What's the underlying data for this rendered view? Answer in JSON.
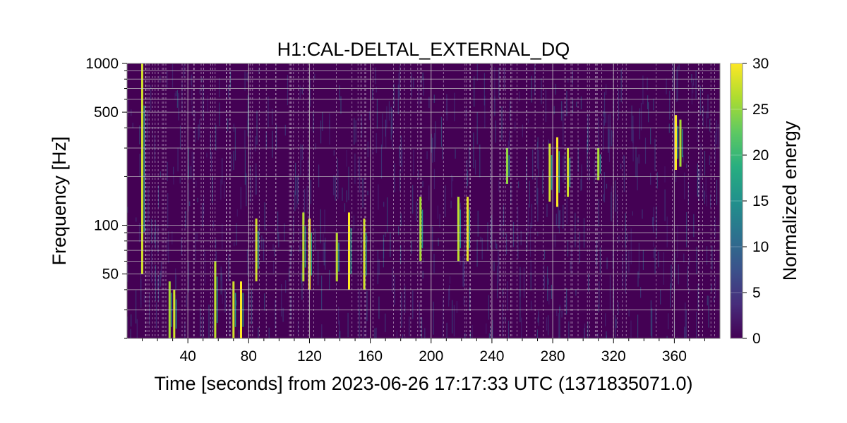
{
  "chart_data": {
    "type": "heatmap",
    "title": "H1:CAL-DELTAL_EXTERNAL_DQ",
    "xlabel": "Time [seconds] from 2023-06-26 17:17:33 UTC (1371835071.0)",
    "ylabel": "Frequency [Hz]",
    "xlim": [
      0,
      390
    ],
    "ylim": [
      20,
      1000
    ],
    "y_scale": "log",
    "x_ticks": [
      40,
      80,
      120,
      160,
      200,
      240,
      280,
      320,
      360
    ],
    "y_ticks": [
      50,
      100,
      500,
      1000
    ],
    "colorbar": {
      "label": "Normalized energy",
      "min": 0,
      "max": 30,
      "ticks": [
        0,
        5,
        10,
        15,
        20,
        25,
        30
      ],
      "colormap": "viridis"
    },
    "grid": true,
    "background_value": 0,
    "bright_streaks": [
      {
        "t": 10,
        "f_low": 50,
        "f_high": 1000,
        "energy": 28
      },
      {
        "t": 28,
        "f_low": 20,
        "f_high": 45,
        "energy": 26
      },
      {
        "t": 31,
        "f_low": 20,
        "f_high": 40,
        "energy": 28
      },
      {
        "t": 58,
        "f_low": 20,
        "f_high": 60,
        "energy": 27
      },
      {
        "t": 70,
        "f_low": 20,
        "f_high": 45,
        "energy": 28
      },
      {
        "t": 75,
        "f_low": 20,
        "f_high": 45,
        "energy": 30
      },
      {
        "t": 85,
        "f_low": 45,
        "f_high": 110,
        "energy": 28
      },
      {
        "t": 116,
        "f_low": 45,
        "f_high": 120,
        "energy": 27
      },
      {
        "t": 120,
        "f_low": 40,
        "f_high": 110,
        "energy": 30
      },
      {
        "t": 138,
        "f_low": 45,
        "f_high": 90,
        "energy": 27
      },
      {
        "t": 146,
        "f_low": 40,
        "f_high": 120,
        "energy": 30
      },
      {
        "t": 156,
        "f_low": 40,
        "f_high": 110,
        "energy": 28
      },
      {
        "t": 193,
        "f_low": 60,
        "f_high": 150,
        "energy": 26
      },
      {
        "t": 218,
        "f_low": 60,
        "f_high": 150,
        "energy": 27
      },
      {
        "t": 224,
        "f_low": 60,
        "f_high": 150,
        "energy": 29
      },
      {
        "t": 250,
        "f_low": 180,
        "f_high": 300,
        "energy": 25
      },
      {
        "t": 278,
        "f_low": 140,
        "f_high": 320,
        "energy": 28
      },
      {
        "t": 283,
        "f_low": 130,
        "f_high": 350,
        "energy": 30
      },
      {
        "t": 290,
        "f_low": 150,
        "f_high": 300,
        "energy": 28
      },
      {
        "t": 310,
        "f_low": 190,
        "f_high": 300,
        "energy": 26
      },
      {
        "t": 361,
        "f_low": 220,
        "f_high": 480,
        "energy": 30
      },
      {
        "t": 364,
        "f_low": 230,
        "f_high": 450,
        "energy": 26
      }
    ]
  }
}
